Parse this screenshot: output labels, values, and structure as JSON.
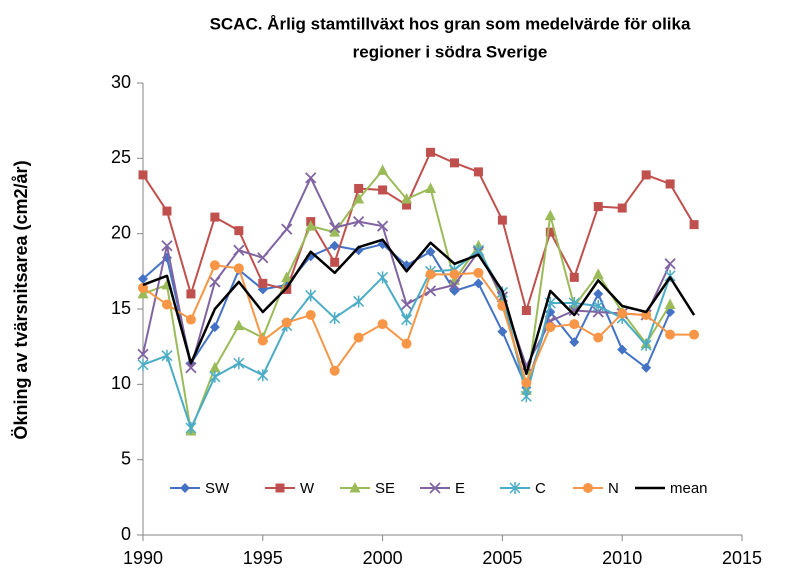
{
  "chart_data": {
    "type": "line",
    "title": [
      "SCAC. Årlig stamtillväxt hos gran som medelvärde för olika",
      "regioner i södra Sverige"
    ],
    "y_label": "Ökning av tvärsnitsarea  (cm2/år)",
    "x": [
      1990,
      1991,
      1992,
      1993,
      1994,
      1995,
      1996,
      1997,
      1998,
      1999,
      2000,
      2001,
      2002,
      2003,
      2004,
      2005,
      2006,
      2007,
      2008,
      2009,
      2010,
      2011,
      2012,
      2013
    ],
    "xlim": [
      1990,
      2015
    ],
    "xticks": [
      1990,
      1995,
      2000,
      2005,
      2010,
      2015
    ],
    "ylim": [
      0,
      30
    ],
    "yticks": [
      0,
      5,
      10,
      15,
      20,
      25,
      30
    ],
    "grid": false,
    "legend": "bottom",
    "series": [
      {
        "name": "SW",
        "color": "#4472c4",
        "marker": "diamond",
        "values": [
          17.0,
          18.4,
          11.4,
          13.8,
          17.6,
          16.3,
          16.6,
          18.5,
          19.2,
          18.9,
          19.3,
          17.9,
          18.8,
          16.2,
          16.7,
          13.5,
          9.8,
          14.8,
          12.8,
          16.0,
          12.3,
          11.1,
          14.8,
          null
        ]
      },
      {
        "name": "W",
        "color": "#c0504d",
        "marker": "square",
        "values": [
          23.9,
          21.5,
          16.0,
          21.1,
          20.2,
          16.7,
          16.3,
          20.8,
          18.1,
          23.0,
          22.9,
          21.9,
          25.4,
          24.7,
          24.1,
          20.9,
          14.9,
          20.1,
          17.1,
          21.8,
          21.7,
          23.9,
          23.3,
          20.6
        ]
      },
      {
        "name": "SE",
        "color": "#9bbb59",
        "marker": "triangle",
        "values": [
          16.0,
          16.6,
          6.9,
          11.1,
          13.9,
          13.1,
          17.1,
          20.5,
          20.1,
          22.3,
          24.2,
          22.3,
          23.0,
          16.9,
          19.2,
          15.5,
          9.6,
          21.2,
          15.2,
          17.3,
          14.8,
          12.7,
          15.3,
          null
        ]
      },
      {
        "name": "E",
        "color": "#8064a2",
        "marker": "x",
        "values": [
          12.0,
          19.2,
          11.1,
          16.8,
          18.9,
          18.4,
          20.3,
          23.7,
          20.4,
          20.8,
          20.5,
          15.3,
          16.2,
          16.6,
          18.8,
          15.8,
          11.2,
          14.2,
          14.9,
          14.8,
          14.7,
          14.6,
          18.0,
          null
        ]
      },
      {
        "name": "C",
        "color": "#4bacc6",
        "marker": "star",
        "values": [
          11.3,
          11.9,
          7.1,
          10.5,
          11.4,
          10.6,
          13.9,
          15.9,
          14.4,
          15.5,
          17.1,
          14.3,
          17.5,
          17.6,
          18.9,
          16.1,
          9.2,
          15.4,
          15.4,
          15.2,
          14.4,
          12.6,
          17.2,
          null
        ]
      },
      {
        "name": "N",
        "color": "#f79646",
        "marker": "circle",
        "values": [
          16.4,
          15.3,
          14.3,
          17.9,
          17.7,
          12.9,
          14.1,
          14.6,
          10.9,
          13.1,
          14.0,
          12.7,
          17.3,
          17.3,
          17.4,
          15.2,
          10.1,
          13.8,
          14.0,
          13.1,
          14.7,
          14.6,
          13.3,
          13.3
        ]
      },
      {
        "name": "mean",
        "color": "#000000",
        "marker": "none",
        "values": [
          16.6,
          17.2,
          11.4,
          15.0,
          16.8,
          14.8,
          16.4,
          18.8,
          17.4,
          19.1,
          19.6,
          17.5,
          19.4,
          18.0,
          18.6,
          16.2,
          10.7,
          16.2,
          14.6,
          16.9,
          15.2,
          14.8,
          17.1,
          14.6
        ]
      }
    ]
  }
}
